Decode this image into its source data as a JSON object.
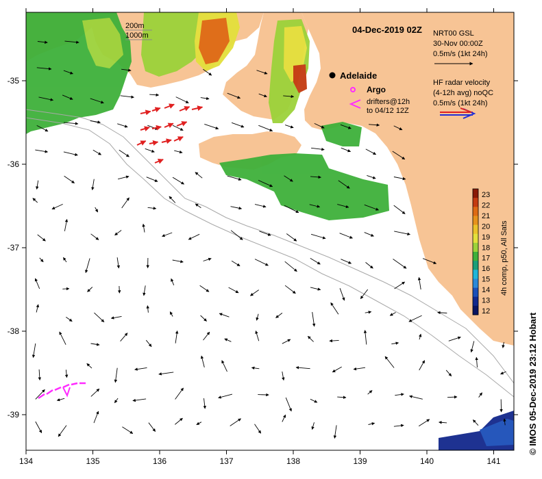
{
  "title": "04-Dec-2019 02Z",
  "depth_legend": [
    "200m",
    "1000m"
  ],
  "city": "Adelaide",
  "argo_label": "Argo",
  "drifters_label": [
    "drifters@12h",
    "to 04/12 12Z"
  ],
  "nrt_legend": [
    "NRT00 GSL",
    "30-Nov 00:00Z",
    "0.5m/s (1kt 24h)"
  ],
  "hf_legend": [
    "HF radar velocity",
    "(4-12h avg) noQC",
    "0.5m/s (1kt 24h)"
  ],
  "colorbar": {
    "label": "4h comp, p50, All Sats",
    "ticks": [
      "23",
      "22",
      "21",
      "20",
      "19",
      "18",
      "17",
      "16",
      "15",
      "14",
      "13",
      "12"
    ],
    "colors": [
      "#8a1a05",
      "#c43b10",
      "#de6a14",
      "#e6921c",
      "#eac22a",
      "#e3e03c",
      "#9cd23a",
      "#3eb03a",
      "#1c9e78",
      "#1fb5d8",
      "#2a88d8",
      "#1b4fb8",
      "#12288c",
      "#0a1460"
    ]
  },
  "x_ticks": [
    "134",
    "135",
    "136",
    "137",
    "138",
    "139",
    "140",
    "141"
  ],
  "y_ticks": [
    "-35",
    "-36",
    "-37",
    "-38",
    "-39"
  ],
  "credit": "© IMOS 05-Dec-2019 23:12 Hobart",
  "colors": {
    "land": "#f7c495",
    "arrow_nrt": "#000000",
    "arrow_hf_red": "#e02020",
    "arrow_hf_blue": "#1f2fd8",
    "drifter": "#ff2bff",
    "isobath": "#a8a8a8"
  }
}
